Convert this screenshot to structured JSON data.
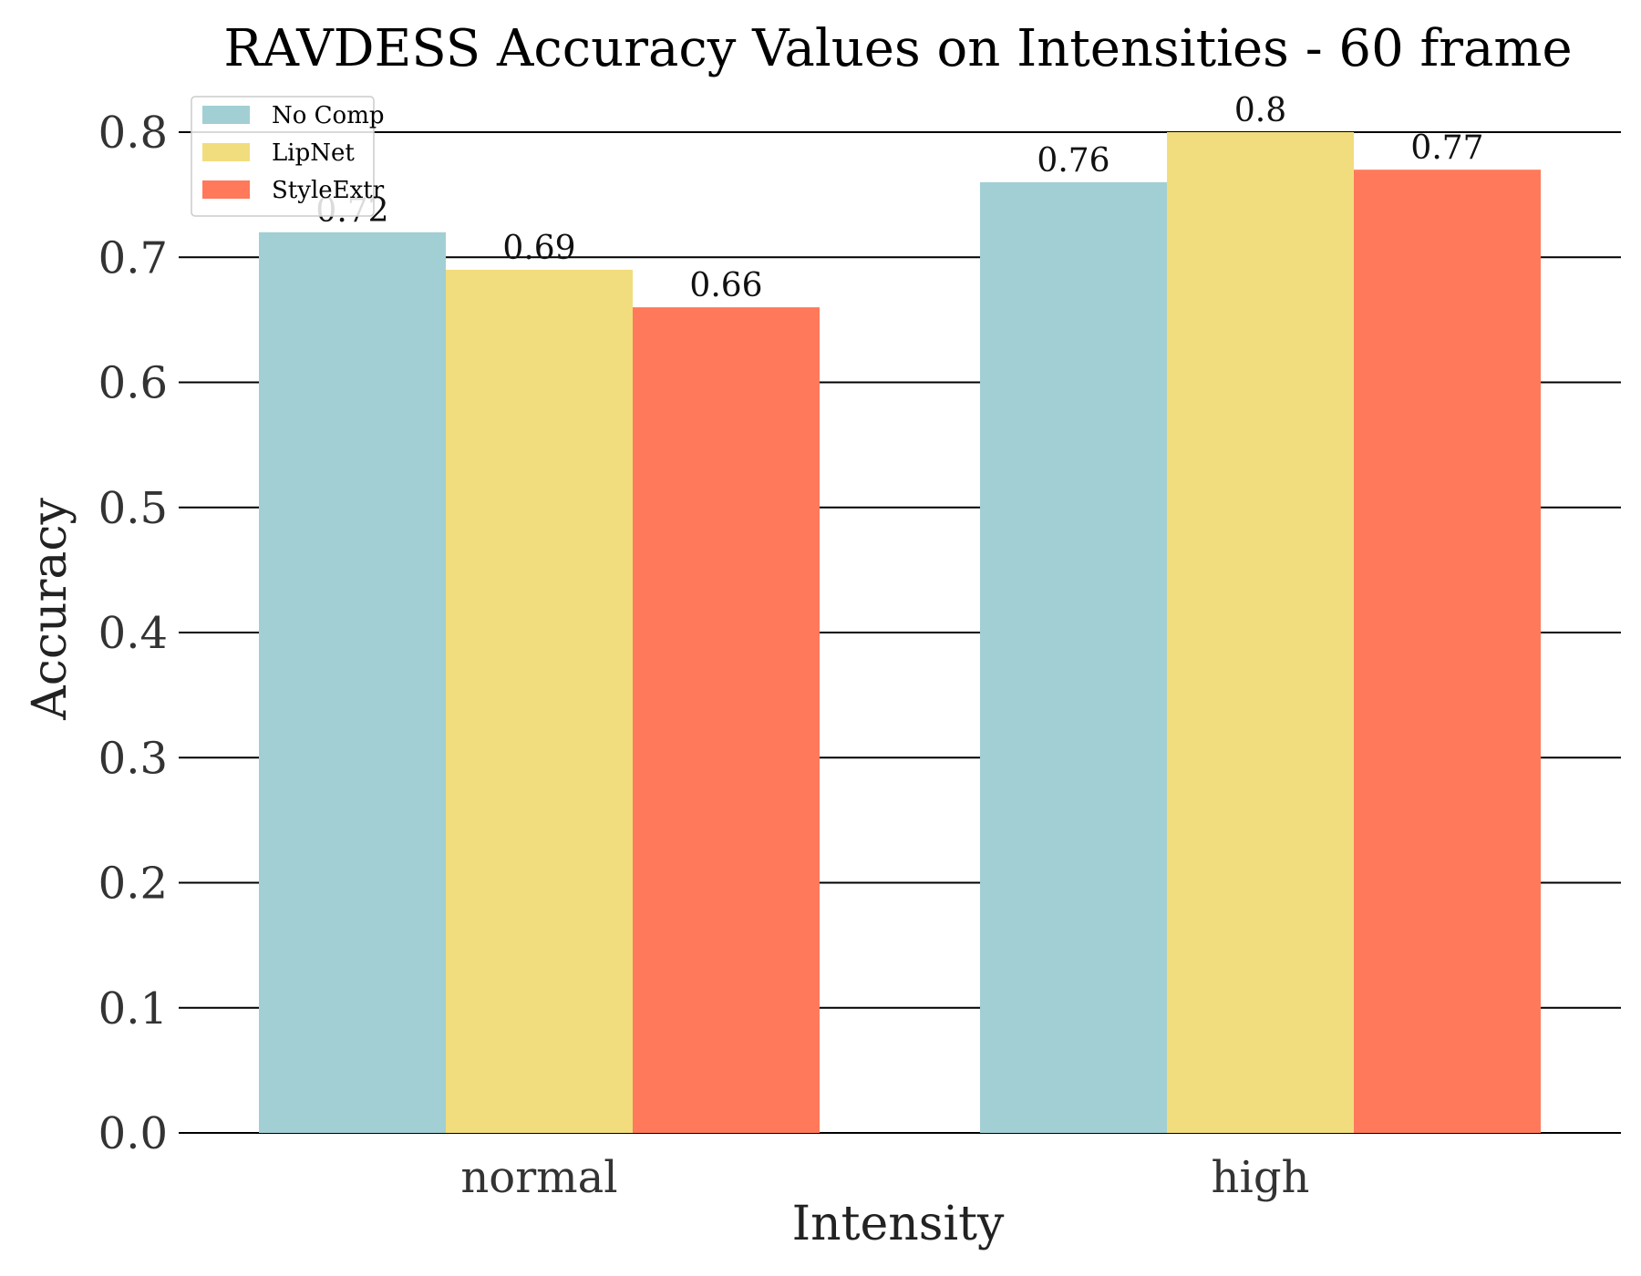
{
  "chart_data": {
    "type": "bar",
    "title": "RAVDESS Accuracy Values on Intensities - 60 frame",
    "xlabel": "Intensity",
    "ylabel": "Accuracy",
    "categories": [
      "normal",
      "high"
    ],
    "series": [
      {
        "name": "No Comp",
        "values": [
          0.72,
          0.76
        ],
        "labels": [
          "0.72",
          "0.76"
        ],
        "color": "#a1cfd4"
      },
      {
        "name": "LipNet",
        "values": [
          0.69,
          0.8
        ],
        "labels": [
          "0.69",
          "0.8"
        ],
        "color": "#f1dd7e"
      },
      {
        "name": "StyleExtr",
        "values": [
          0.66,
          0.77
        ],
        "labels": [
          "0.66",
          "0.77"
        ],
        "color": "#ff795a"
      }
    ],
    "ylim": [
      0,
      0.8
    ],
    "yticks": [
      0.0,
      0.1,
      0.2,
      0.3,
      0.4,
      0.5,
      0.6,
      0.7,
      0.8
    ],
    "ytick_labels": [
      "0.0",
      "0.1",
      "0.2",
      "0.3",
      "0.4",
      "0.5",
      "0.6",
      "0.7",
      "0.8"
    ],
    "grid": "horizontal",
    "legend": "top-left"
  }
}
